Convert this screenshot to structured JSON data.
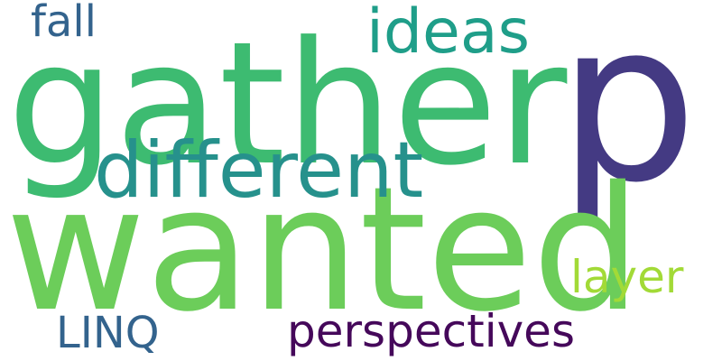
{
  "cloud": {
    "words": [
      {
        "text": "gather",
        "color": "#3dbb71"
      },
      {
        "text": "p",
        "color": "#443a83"
      },
      {
        "text": "wanted",
        "color": "#6ccd5a"
      },
      {
        "text": "different",
        "color": "#26918c"
      },
      {
        "text": "ideas",
        "color": "#1f9e89"
      },
      {
        "text": "fall",
        "color": "#33638d"
      },
      {
        "text": "layer",
        "color": "#a2da37"
      },
      {
        "text": "LINQ",
        "color": "#33638d"
      },
      {
        "text": "perspectives",
        "color": "#45085a"
      }
    ]
  }
}
